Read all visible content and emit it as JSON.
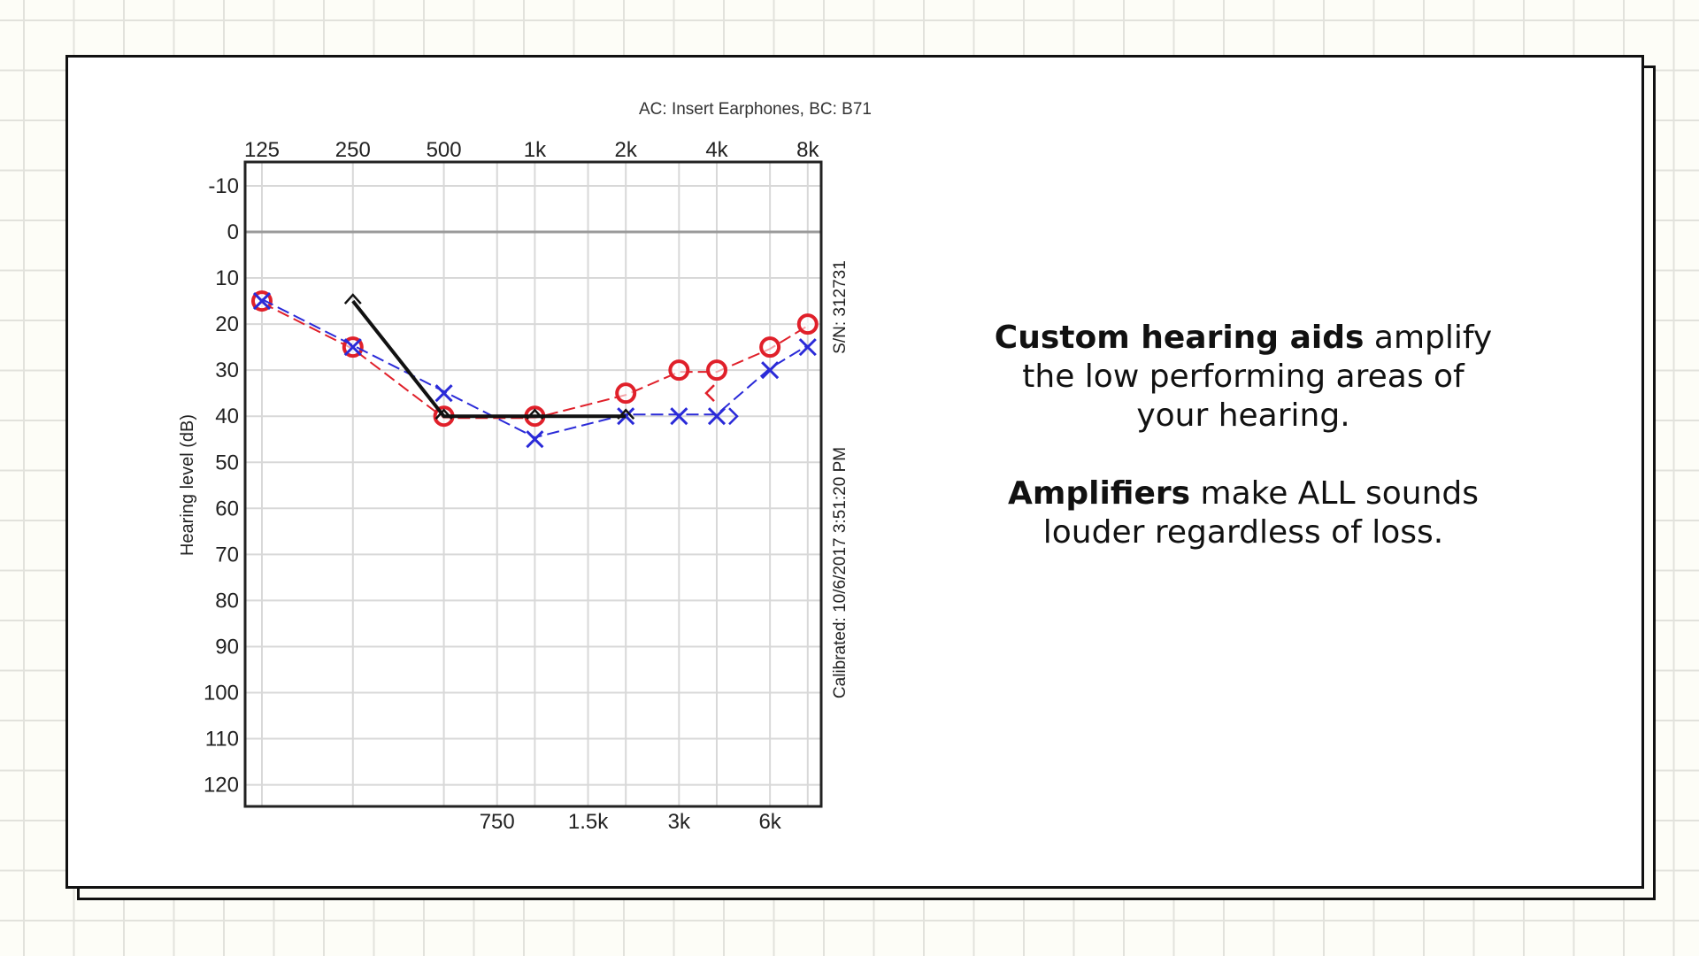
{
  "slide": {
    "paragraphs": [
      {
        "bold": "Custom hearing aids",
        "rest": " amplify the low performing areas of your hearing."
      },
      {
        "bold": "Amplifiers",
        "rest": " make ALL sounds louder regardless of loss."
      }
    ]
  },
  "colors": {
    "background": "#fdfdf7",
    "grid": "#e2e2dc",
    "card_border": "#111111",
    "right_ear": "#e0202a",
    "left_ear": "#2a2ad8",
    "bone": "#111111",
    "plot_grid": "#d8d8d8"
  },
  "chart_data": {
    "type": "line",
    "title": "AC: Insert Earphones, BC: B71",
    "xlabel": "",
    "ylabel": "Hearing level (dB)",
    "side_labels": [
      "S/N: 312731",
      "Calibrated: 10/6/2017 3:51:20 PM"
    ],
    "x_scale": "log2",
    "x_top_ticks": [
      {
        "hz": 125,
        "label": "125"
      },
      {
        "hz": 250,
        "label": "250"
      },
      {
        "hz": 500,
        "label": "500"
      },
      {
        "hz": 1000,
        "label": "1k"
      },
      {
        "hz": 2000,
        "label": "2k"
      },
      {
        "hz": 4000,
        "label": "4k"
      },
      {
        "hz": 8000,
        "label": "8k"
      }
    ],
    "x_bottom_ticks": [
      {
        "hz": 750,
        "label": "750"
      },
      {
        "hz": 1500,
        "label": "1.5k"
      },
      {
        "hz": 3000,
        "label": "3k"
      },
      {
        "hz": 6000,
        "label": "6k"
      }
    ],
    "y_ticks": [
      -10,
      0,
      10,
      20,
      30,
      40,
      50,
      60,
      70,
      80,
      90,
      100,
      110,
      120
    ],
    "ylim": [
      -15,
      125
    ],
    "y_inverted": true,
    "grid": true,
    "series": [
      {
        "name": "Right ear AC (O)",
        "marker": "circle",
        "color": "#e0202a",
        "x": [
          125,
          250,
          500,
          1000,
          2000,
          3000,
          4000,
          6000,
          8000
        ],
        "values": [
          15,
          25,
          40,
          40,
          35,
          30,
          30,
          25,
          20
        ]
      },
      {
        "name": "Left ear AC (X)",
        "marker": "x",
        "color": "#2a2ad8",
        "x": [
          125,
          250,
          500,
          1000,
          2000,
          3000,
          4000,
          6000,
          8000
        ],
        "values": [
          15,
          25,
          35,
          45,
          40,
          40,
          40,
          30,
          25
        ]
      },
      {
        "name": "BC unmasked (^)",
        "marker": "caret",
        "color": "#111111",
        "x": [
          250,
          500,
          1000,
          2000
        ],
        "values": [
          15,
          40,
          40,
          40
        ]
      },
      {
        "name": "Right BC (<)",
        "marker": "lt",
        "color": "#e0202a",
        "x": [
          4000
        ],
        "values": [
          35
        ]
      },
      {
        "name": "Left BC (>)",
        "marker": "gt",
        "color": "#2a2ad8",
        "x": [
          4000
        ],
        "values": [
          40
        ]
      }
    ]
  }
}
